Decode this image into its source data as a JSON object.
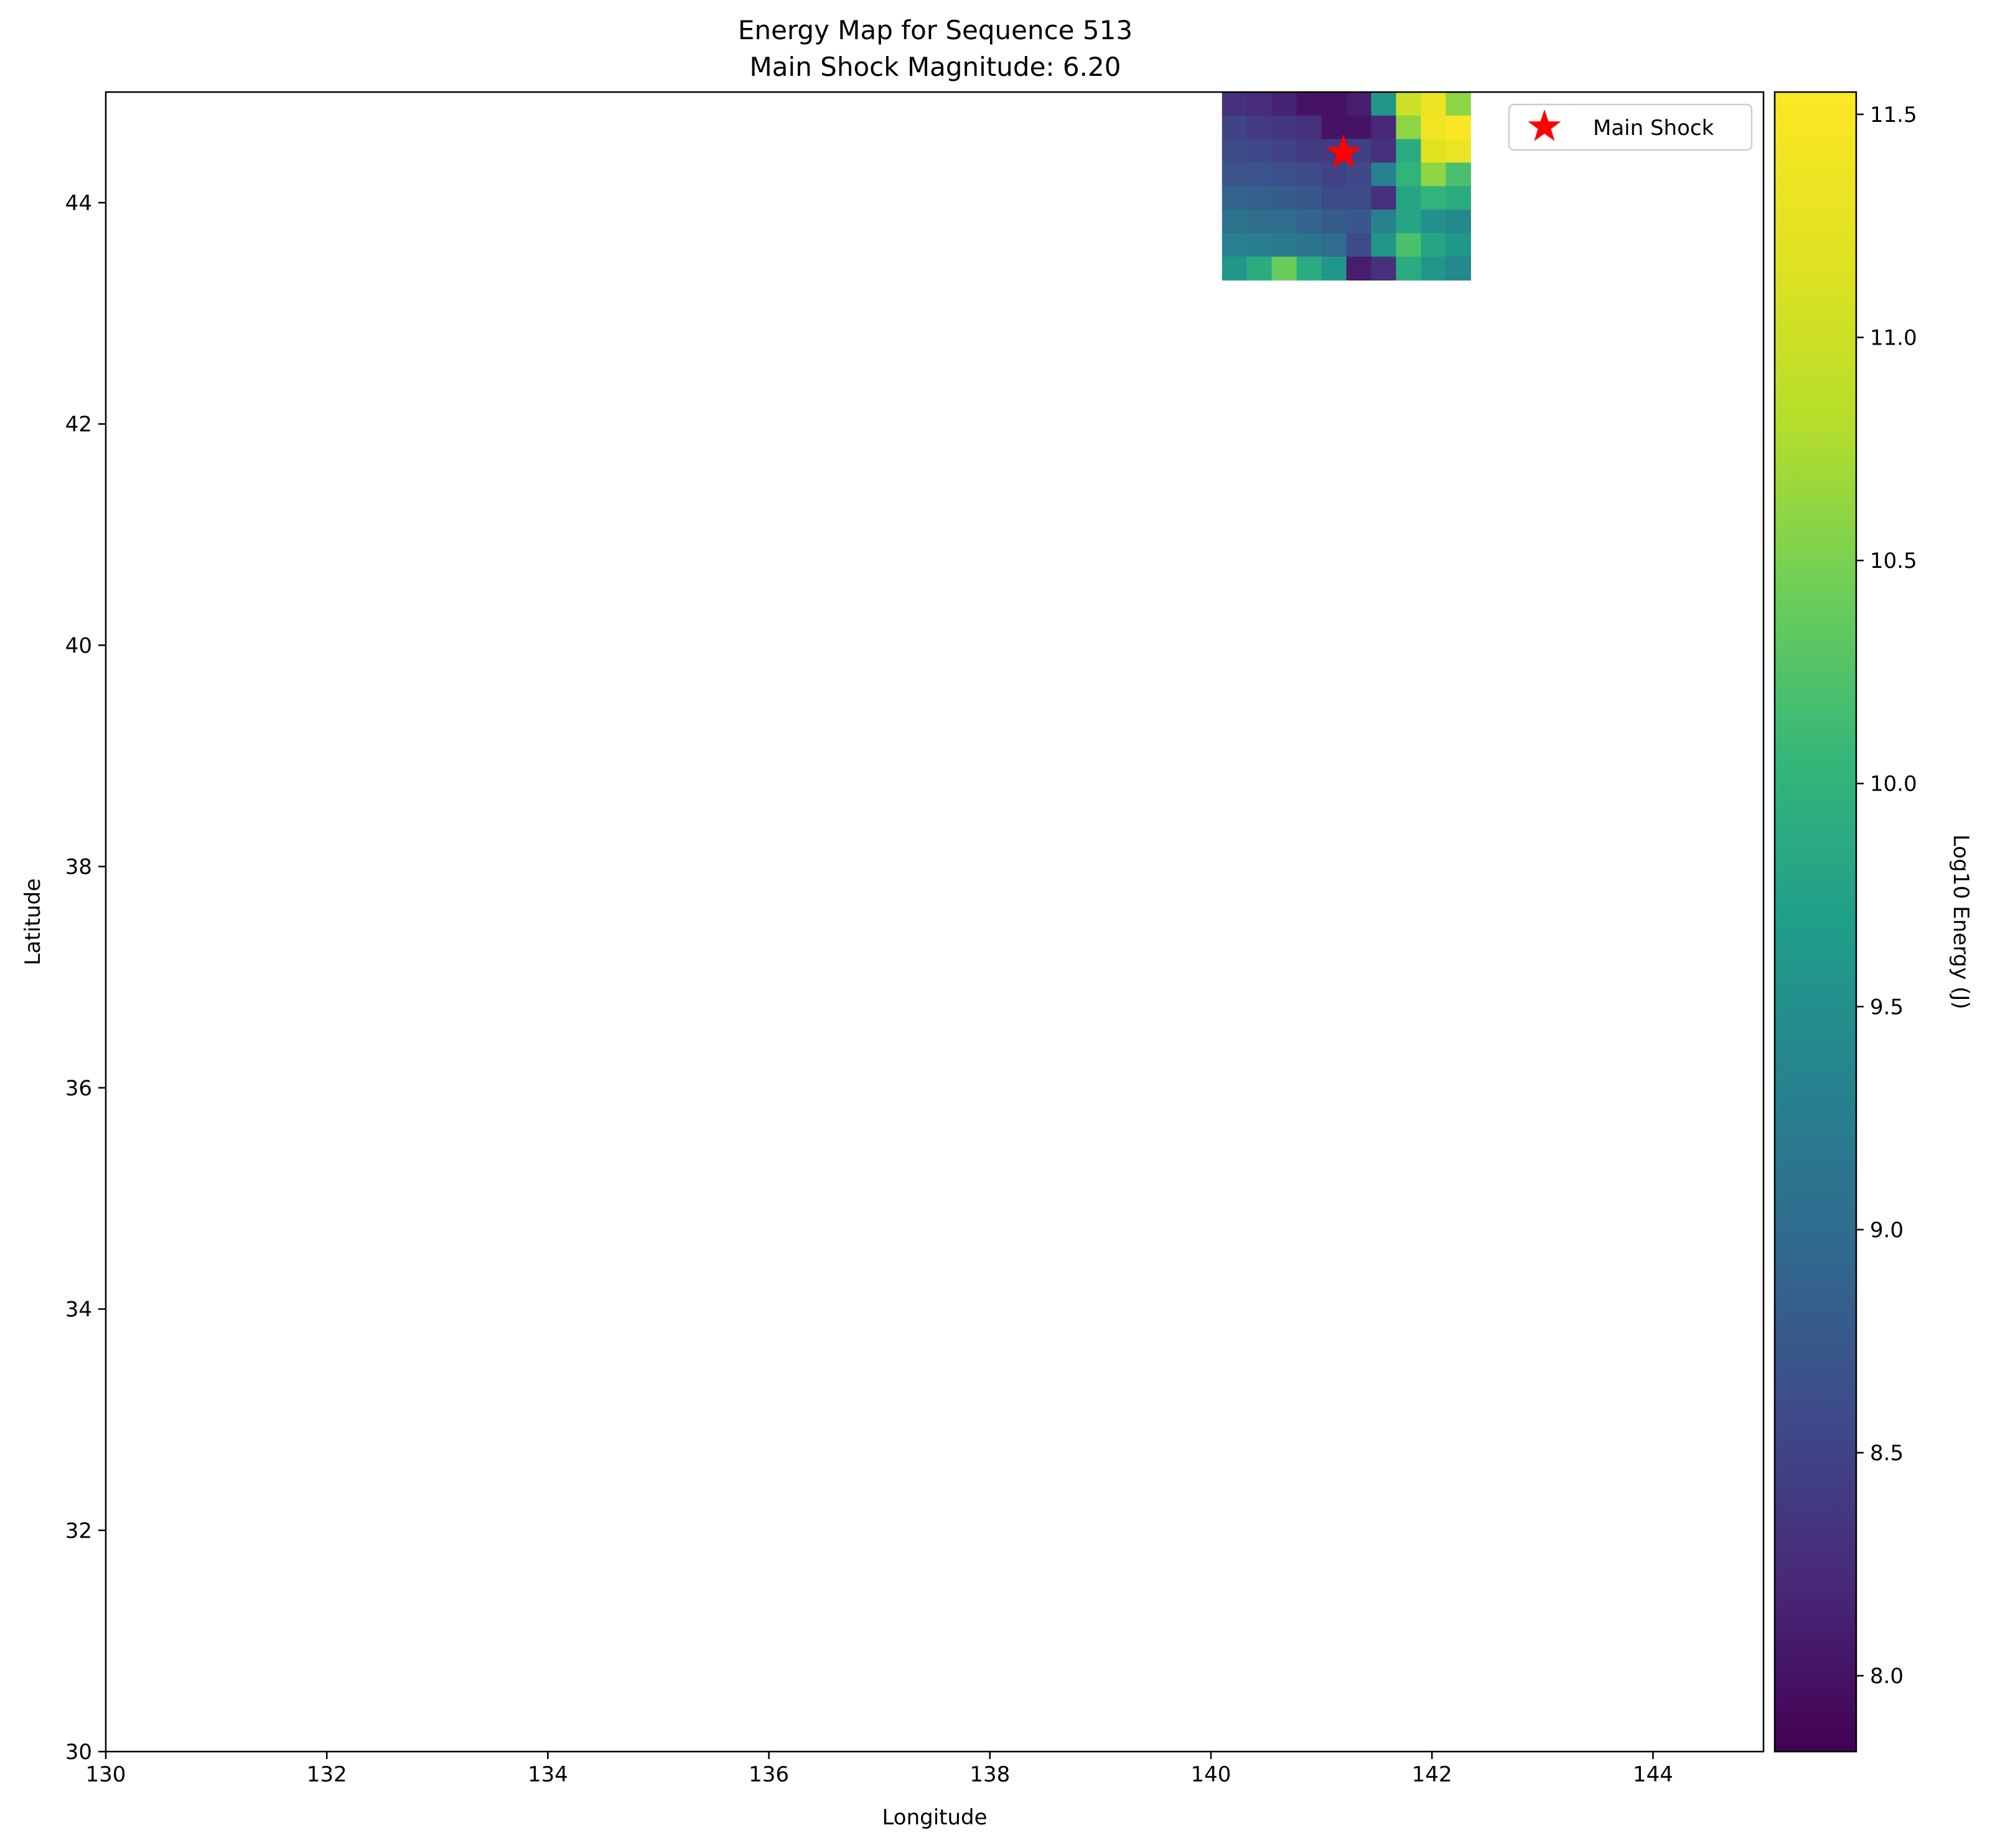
{
  "chart_data": {
    "type": "heatmap",
    "title": "Energy Map for Sequence 513",
    "subtitle": "Main Shock Magnitude: 6.20",
    "xlabel": "Longitude",
    "ylabel": "Latitude",
    "xlim": [
      130,
      145
    ],
    "ylim": [
      30,
      45
    ],
    "xticks": [
      130,
      132,
      134,
      136,
      138,
      140,
      142,
      144
    ],
    "yticks": [
      30,
      32,
      34,
      36,
      38,
      40,
      42,
      44
    ],
    "grid": false,
    "legend": {
      "position": "top-right",
      "entries": [
        {
          "label": "Main Shock",
          "marker": "star",
          "color": "#ff0000"
        }
      ]
    },
    "colorbar": {
      "label": "Log10 Energy (J)",
      "colormap": "viridis",
      "range": [
        7.83,
        11.55
      ],
      "ticks": [
        8.0,
        8.5,
        9.0,
        9.5,
        10.0,
        10.5,
        11.0,
        11.5
      ],
      "tick_labels": [
        "8.0",
        "8.5",
        "9.0",
        "9.5",
        "10.0",
        "10.5",
        "11.0",
        "11.5"
      ]
    },
    "heatmap_extent": {
      "lon": [
        140.1,
        142.35
      ],
      "lat": [
        43.3,
        45.0
      ]
    },
    "heatmap_grid": {
      "lon_step": 0.225,
      "lat_step": 0.2125,
      "rows_from_top": [
        [
          8.3,
          8.25,
          8.15,
          8.0,
          8.0,
          8.1,
          9.6,
          11.0,
          11.3,
          10.6
        ],
        [
          8.5,
          8.4,
          8.35,
          8.3,
          8.0,
          8.0,
          8.2,
          10.6,
          11.4,
          11.5
        ],
        [
          8.6,
          8.55,
          8.5,
          8.4,
          8.4,
          8.45,
          8.3,
          9.9,
          11.2,
          11.3
        ],
        [
          8.7,
          8.7,
          8.65,
          8.6,
          8.5,
          8.55,
          9.3,
          10.0,
          10.6,
          10.2
        ],
        [
          8.9,
          8.85,
          8.8,
          8.75,
          8.6,
          8.6,
          8.3,
          9.8,
          10.0,
          9.9
        ],
        [
          9.1,
          9.05,
          9.0,
          8.9,
          8.8,
          8.75,
          9.3,
          9.8,
          9.5,
          9.4
        ],
        [
          9.3,
          9.25,
          9.2,
          9.1,
          9.0,
          8.6,
          9.6,
          10.2,
          9.8,
          9.6
        ],
        [
          9.6,
          9.9,
          10.4,
          9.9,
          9.6,
          8.1,
          8.3,
          9.9,
          9.6,
          9.4
        ]
      ]
    },
    "main_shock": {
      "lon": 141.2,
      "lat": 44.45
    }
  }
}
